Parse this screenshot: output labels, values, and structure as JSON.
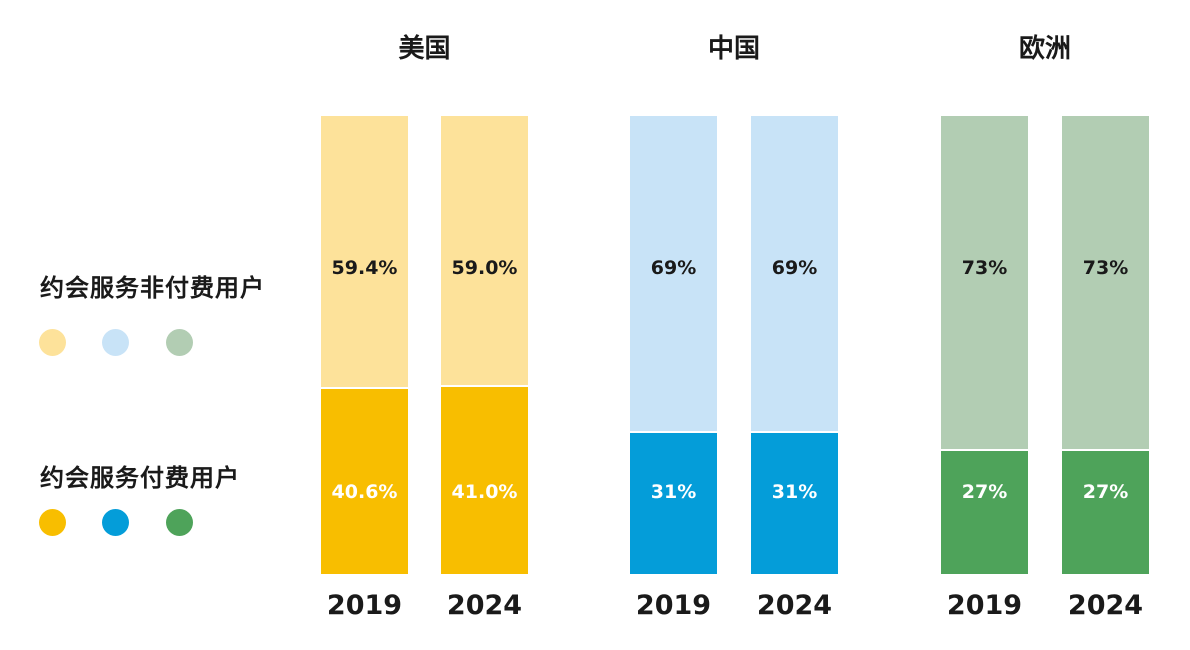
{
  "chart_data": {
    "type": "bar",
    "stacked": true,
    "legend": [
      {
        "label": "约会服务非付费用户",
        "colors": [
          "#fde29a",
          "#c8e3f7",
          "#b2cdb3"
        ]
      },
      {
        "label": "约会服务付费用户",
        "colors": [
          "#f8be00",
          "#049dd9",
          "#4ea35a"
        ]
      }
    ],
    "groups": [
      {
        "name": "美国",
        "colors": {
          "unpaid": "#fde29a",
          "paid": "#f8be00"
        },
        "bars": [
          {
            "year": "2019",
            "unpaid": 59.4,
            "paid": 40.6,
            "unpaid_label": "59.4%",
            "paid_label": "40.6%"
          },
          {
            "year": "2024",
            "unpaid": 59.0,
            "paid": 41.0,
            "unpaid_label": "59.0%",
            "paid_label": "41.0%"
          }
        ]
      },
      {
        "name": "中国",
        "colors": {
          "unpaid": "#c8e3f7",
          "paid": "#049dd9"
        },
        "bars": [
          {
            "year": "2019",
            "unpaid": 69,
            "paid": 31,
            "unpaid_label": "69%",
            "paid_label": "31%"
          },
          {
            "year": "2024",
            "unpaid": 69,
            "paid": 31,
            "unpaid_label": "69%",
            "paid_label": "31%"
          }
        ]
      },
      {
        "name": "欧洲",
        "colors": {
          "unpaid": "#b2cdb3",
          "paid": "#4ea35a"
        },
        "bars": [
          {
            "year": "2019",
            "unpaid": 73,
            "paid": 27,
            "unpaid_label": "73%",
            "paid_label": "27%"
          },
          {
            "year": "2024",
            "unpaid": 73,
            "paid": 27,
            "unpaid_label": "73%",
            "paid_label": "27%"
          }
        ]
      }
    ],
    "ylim": [
      0,
      100
    ]
  }
}
